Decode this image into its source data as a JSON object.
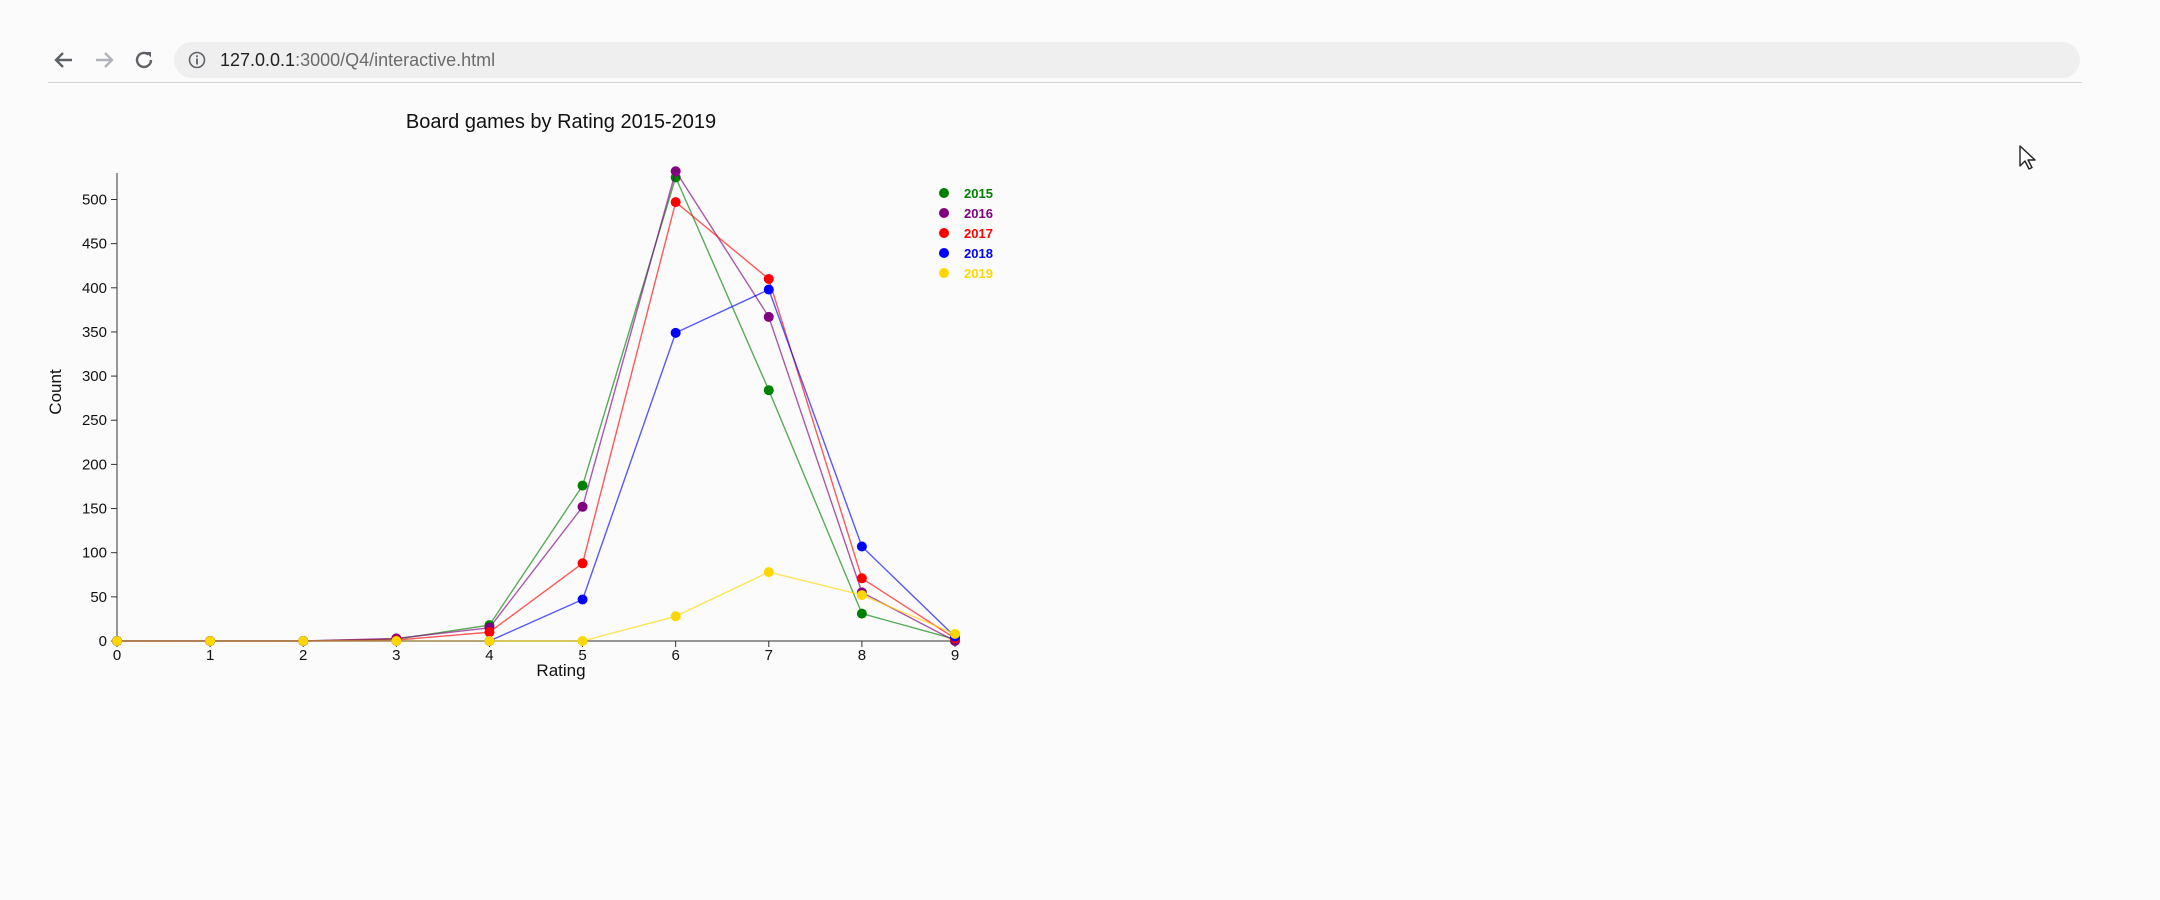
{
  "browser": {
    "url_host": "127.0.0.1",
    "url_rest": ":3000/Q4/interactive.html"
  },
  "chart_data": {
    "type": "line",
    "title": "Board games by Rating 2015-2019",
    "xlabel": "Rating",
    "ylabel": "Count",
    "x": [
      0,
      1,
      2,
      3,
      4,
      5,
      6,
      7,
      8,
      9
    ],
    "xlim": [
      0,
      9
    ],
    "ylim": [
      0,
      530
    ],
    "yticks": [
      0,
      50,
      100,
      150,
      200,
      250,
      300,
      350,
      400,
      450,
      500
    ],
    "grid": false,
    "legend_position": "top-right",
    "series": [
      {
        "name": "2015",
        "color": "#008000",
        "values": [
          0,
          0,
          0,
          2,
          18,
          176,
          525,
          284,
          31,
          2
        ]
      },
      {
        "name": "2016",
        "color": "#800080",
        "values": [
          0,
          0,
          0,
          3,
          15,
          152,
          532,
          367,
          55,
          0
        ]
      },
      {
        "name": "2017",
        "color": "#ff0000",
        "values": [
          0,
          0,
          0,
          1,
          10,
          88,
          497,
          410,
          71,
          3
        ]
      },
      {
        "name": "2018",
        "color": "#0000ff",
        "values": [
          0,
          0,
          0,
          0,
          0,
          47,
          349,
          398,
          107,
          5
        ]
      },
      {
        "name": "2019",
        "color": "#ffd700",
        "values": [
          0,
          0,
          0,
          0,
          0,
          0,
          28,
          78,
          52,
          8
        ]
      }
    ]
  }
}
